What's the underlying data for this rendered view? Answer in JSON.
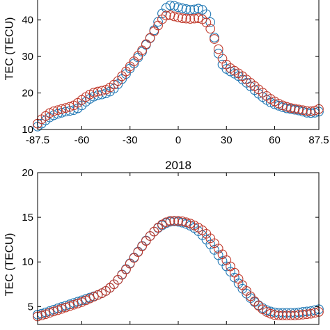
{
  "chart_data": [
    {
      "type": "scatter",
      "title": "",
      "xlabel": "",
      "ylabel": "TEC (TECU)",
      "xlim": [
        -87.5,
        87.5
      ],
      "ylim": [
        10,
        47
      ],
      "xticks": [
        -87.5,
        -60,
        -30,
        0,
        30,
        60,
        87.5
      ],
      "xtick_labels": [
        "-87.5",
        "-60",
        "-30",
        "0",
        "30",
        "60",
        "87.5"
      ],
      "yticks": [
        10,
        20,
        30,
        40
      ],
      "ytick_labels": [
        "10",
        "20",
        "30",
        "40"
      ],
      "grid": false,
      "marker": "open-circle",
      "x": [
        -87.5,
        -85,
        -82.5,
        -80,
        -77.5,
        -75,
        -72.5,
        -70,
        -67.5,
        -65,
        -62.5,
        -60,
        -57.5,
        -55,
        -52.5,
        -50,
        -47.5,
        -45,
        -42.5,
        -40,
        -37.5,
        -35,
        -32.5,
        -30,
        -27.5,
        -25,
        -22.5,
        -20,
        -17.5,
        -15,
        -12.5,
        -10,
        -7.5,
        -5,
        -2.5,
        0,
        2.5,
        5,
        7.5,
        10,
        12.5,
        15,
        17.5,
        20,
        22.5,
        25,
        27.5,
        30,
        32.5,
        35,
        37.5,
        40,
        42.5,
        45,
        47.5,
        50,
        52.5,
        55,
        57.5,
        60,
        62.5,
        65,
        67.5,
        70,
        72.5,
        75,
        77.5,
        80,
        82.5,
        85,
        87.5
      ],
      "series": [
        {
          "color": "#1f77b4",
          "values": [
            10.8,
            11.6,
            12.5,
            13.3,
            13.9,
            14.3,
            14.6,
            14.9,
            15.1,
            15.3,
            15.8,
            16.6,
            17.6,
            18.4,
            19.0,
            19.4,
            19.6,
            19.9,
            20.4,
            21.2,
            22.4,
            23.8,
            25.2,
            26.7,
            28.1,
            29.7,
            31.3,
            33.2,
            35.0,
            37.2,
            39.5,
            41.8,
            43.3,
            44.0,
            43.9,
            43.5,
            43.2,
            43.0,
            42.8,
            42.9,
            43.1,
            42.8,
            41.6,
            39.4,
            35.2,
            30.8,
            27.8,
            26.6,
            25.9,
            25.3,
            24.6,
            23.7,
            22.8,
            21.8,
            20.8,
            19.8,
            18.9,
            18.1,
            17.4,
            16.9,
            16.5,
            16.1,
            15.8,
            15.6,
            15.4,
            15.2,
            14.9,
            14.6,
            14.5,
            14.6,
            14.9
          ]
        },
        {
          "color": "#c0392b",
          "values": [
            11.6,
            12.8,
            13.7,
            14.5,
            15.0,
            15.3,
            15.6,
            15.9,
            16.2,
            16.6,
            17.3,
            18.1,
            18.9,
            19.6,
            20.1,
            20.4,
            20.6,
            20.9,
            21.5,
            22.3,
            23.3,
            24.6,
            25.9,
            27.3,
            28.7,
            30.2,
            31.7,
            33.4,
            35.1,
            36.9,
            38.5,
            40.2,
            41.2,
            41.3,
            41.0,
            40.7,
            40.5,
            40.4,
            40.3,
            40.4,
            40.5,
            40.2,
            39.3,
            37.6,
            34.8,
            32.0,
            29.4,
            27.8,
            26.8,
            26.1,
            25.4,
            24.6,
            23.7,
            22.8,
            21.9,
            21.0,
            20.1,
            19.2,
            18.4,
            17.7,
            17.1,
            16.6,
            16.2,
            15.9,
            15.7,
            15.5,
            15.3,
            15.1,
            15.0,
            15.2,
            15.6
          ]
        }
      ]
    },
    {
      "type": "scatter",
      "title": "2018",
      "xlabel": "",
      "ylabel": "TEC (TECU)",
      "xlim": [
        -87.5,
        87.5
      ],
      "ylim": [
        3,
        20
      ],
      "xticks": [
        -87.5,
        -60,
        -30,
        0,
        30,
        60,
        87.5
      ],
      "yticks": [
        5,
        10,
        15,
        20
      ],
      "ytick_labels": [
        "5",
        "10",
        "15",
        "20"
      ],
      "grid": false,
      "marker": "open-circle",
      "x": [
        -87.5,
        -85,
        -82.5,
        -80,
        -77.5,
        -75,
        -72.5,
        -70,
        -67.5,
        -65,
        -62.5,
        -60,
        -57.5,
        -55,
        -52.5,
        -50,
        -47.5,
        -45,
        -42.5,
        -40,
        -37.5,
        -35,
        -32.5,
        -30,
        -27.5,
        -25,
        -22.5,
        -20,
        -17.5,
        -15,
        -12.5,
        -10,
        -7.5,
        -5,
        -2.5,
        0,
        2.5,
        5,
        7.5,
        10,
        12.5,
        15,
        17.5,
        20,
        22.5,
        25,
        27.5,
        30,
        32.5,
        35,
        37.5,
        40,
        42.5,
        45,
        47.5,
        50,
        52.5,
        55,
        57.5,
        60,
        62.5,
        65,
        67.5,
        70,
        72.5,
        75,
        77.5,
        80,
        82.5,
        85,
        87.5
      ],
      "series": [
        {
          "color": "#1f77b4",
          "values": [
            4.1,
            4.2,
            4.35,
            4.5,
            4.65,
            4.8,
            4.95,
            5.1,
            5.25,
            5.4,
            5.55,
            5.7,
            5.85,
            6.0,
            6.15,
            6.3,
            6.5,
            6.75,
            7.1,
            7.5,
            8.0,
            8.6,
            9.2,
            9.85,
            10.5,
            11.15,
            11.8,
            12.4,
            12.9,
            13.4,
            13.8,
            14.1,
            14.35,
            14.5,
            14.55,
            14.5,
            14.4,
            14.25,
            14.05,
            13.8,
            13.45,
            13.0,
            12.5,
            11.95,
            11.35,
            10.75,
            10.1,
            9.5,
            8.9,
            8.25,
            7.6,
            7.0,
            6.45,
            5.95,
            5.5,
            5.15,
            4.85,
            4.6,
            4.45,
            4.35,
            4.3,
            4.3,
            4.3,
            4.3,
            4.3,
            4.35,
            4.4,
            4.45,
            4.5,
            4.6,
            4.7
          ]
        },
        {
          "color": "#c0392b",
          "values": [
            3.9,
            4.0,
            4.15,
            4.3,
            4.45,
            4.6,
            4.75,
            4.9,
            5.05,
            5.2,
            5.35,
            5.5,
            5.7,
            5.9,
            6.1,
            6.3,
            6.5,
            6.75,
            7.1,
            7.5,
            8.0,
            8.55,
            9.15,
            9.8,
            10.45,
            11.1,
            11.75,
            12.35,
            12.9,
            13.4,
            13.85,
            14.2,
            14.45,
            14.6,
            14.6,
            14.6,
            14.55,
            14.45,
            14.3,
            14.1,
            13.85,
            13.55,
            13.15,
            12.65,
            12.1,
            11.5,
            10.85,
            10.2,
            9.5,
            8.8,
            8.1,
            7.4,
            6.75,
            6.15,
            5.6,
            5.1,
            4.7,
            4.4,
            4.2,
            4.05,
            4.0,
            4.0,
            4.0,
            4.0,
            4.0,
            4.05,
            4.1,
            4.15,
            4.2,
            4.3,
            4.4
          ]
        }
      ]
    }
  ]
}
